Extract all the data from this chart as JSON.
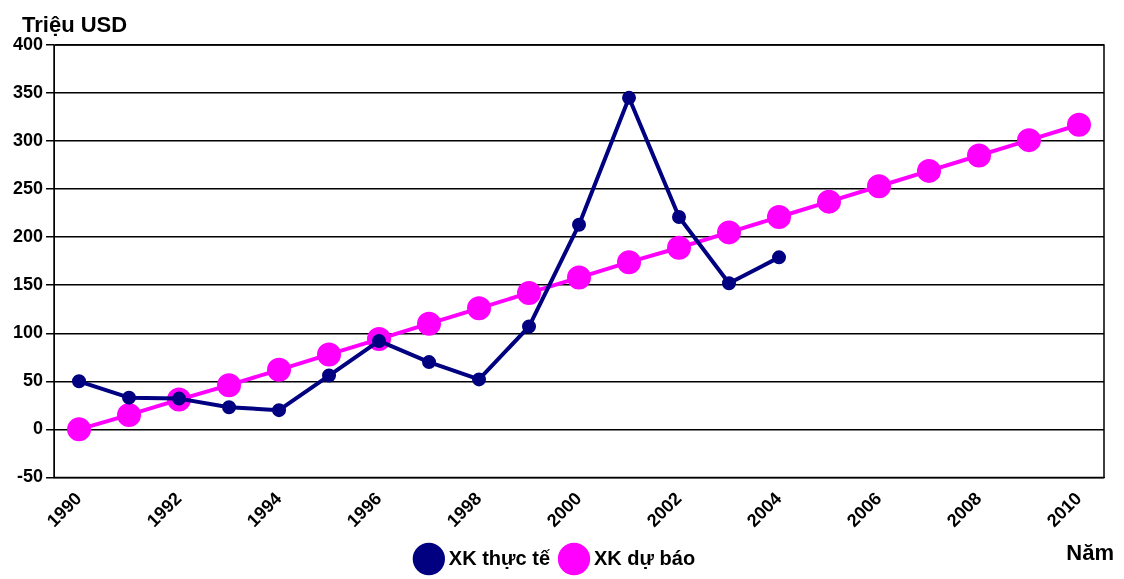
{
  "chart_data": {
    "type": "line",
    "ylabel": "Triệu USD",
    "xlabel": "Năm",
    "categories": [
      "1990",
      null,
      "1992",
      null,
      "1994",
      null,
      "1996",
      null,
      "1998",
      null,
      "2000",
      null,
      "2002",
      null,
      "2004",
      null,
      "2006",
      null,
      "2008",
      null,
      "2010"
    ],
    "series": [
      {
        "name": "XK thực tế",
        "color": "#000080",
        "values": [
          50,
          33,
          32,
          23,
          20,
          56,
          92,
          70,
          52,
          107,
          213,
          345,
          221,
          152,
          179,
          null,
          null,
          null,
          null,
          null,
          null
        ]
      },
      {
        "name": "XK dự báo",
        "color": "#ff00ff",
        "values": [
          0,
          15,
          31,
          46,
          62,
          78,
          94,
          110,
          126,
          142,
          158,
          174,
          189,
          205,
          221,
          237,
          253,
          269,
          285,
          301,
          317
        ]
      }
    ],
    "ylim": [
      -50,
      400
    ],
    "yticks": [
      -50,
      0,
      50,
      100,
      150,
      200,
      250,
      300,
      350,
      400
    ],
    "grid": "y",
    "legend": "bottom",
    "marker": "circle",
    "line_style": "solid"
  }
}
